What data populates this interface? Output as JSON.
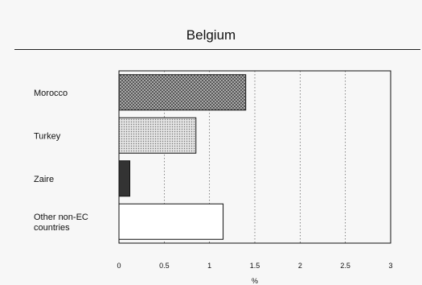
{
  "chart_data": {
    "type": "bar",
    "orientation": "horizontal",
    "title": "Belgium",
    "categories": [
      [
        "Morocco"
      ],
      [
        "Turkey"
      ],
      [
        "Zaire"
      ],
      [
        "Other non-EC",
        "countries"
      ]
    ],
    "values": [
      1.4,
      0.85,
      0.12,
      1.15
    ],
    "bar_styles": [
      "dense-crosshatch",
      "light-dots",
      "dark-solid",
      "white"
    ],
    "xlim": [
      0,
      3
    ],
    "xticks": [
      "0",
      "0.5",
      "1",
      "1.5",
      "2",
      "2.5",
      "3"
    ],
    "xlabel": "%",
    "ylabel": "",
    "grid": "vertical-dotted",
    "legend": "none"
  }
}
